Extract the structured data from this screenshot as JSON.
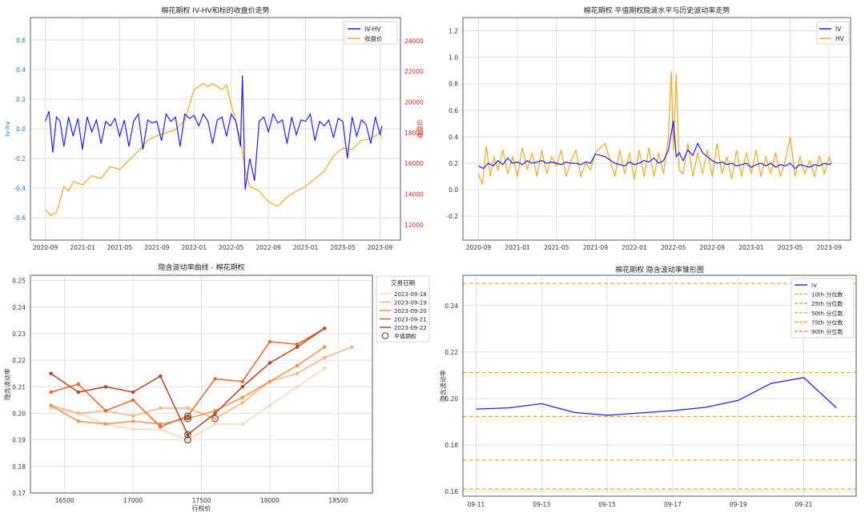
{
  "colors": {
    "iv": "#1f1fe6",
    "price": "#f5a623",
    "grid": "#d8d8d8",
    "axis": "#333333",
    "orange_dash": "#f5a623",
    "left_tick": "#1f77b4",
    "right_tick": "#d62728"
  },
  "chart_data": [
    {
      "type": "line",
      "title": "棉花期权 IV-HV和标的收盘价走势",
      "ylabel": "iv-hv",
      "y2label": "收盘价",
      "x_ticks": [
        "2020-09",
        "2021-01",
        "2021-05",
        "2021-09",
        "2022-01",
        "2022-05",
        "2022-09",
        "2023-01",
        "2023-05",
        "2023-09"
      ],
      "ylim": [
        -0.75,
        0.75
      ],
      "y_ticks": [
        "-0.6",
        "-0.4",
        "-0.2",
        "0.0",
        "0.2",
        "0.4",
        "0.6"
      ],
      "y2lim": [
        11000,
        25500
      ],
      "y2_ticks": [
        "12000",
        "14000",
        "16000",
        "18000",
        "20000",
        "22000",
        "24000"
      ],
      "legend": [
        "IV-HV",
        "收盘价"
      ],
      "legend_position": "top-right",
      "series": [
        {
          "name": "IV-HV",
          "x_months": [
            0,
            0.4,
            0.8,
            1.2,
            1.6,
            2,
            2.5,
            3,
            3.5,
            4,
            4.5,
            5,
            5.5,
            6,
            6.5,
            7,
            7.5,
            8,
            8.5,
            9,
            9.5,
            10,
            10.5,
            11,
            11.5,
            12,
            12.5,
            13,
            13.5,
            14,
            14.5,
            15,
            15.5,
            16,
            16.5,
            17,
            17.5,
            18,
            18.5,
            19,
            19.5,
            20,
            20.5,
            21,
            21.2,
            21.5,
            22,
            22.5,
            23,
            23.5,
            24,
            24.5,
            25,
            25.5,
            26,
            26.5,
            27,
            27.5,
            28,
            28.5,
            29,
            29.5,
            30,
            30.5,
            31,
            31.5,
            32,
            32.5,
            33,
            33.5,
            34,
            34.5,
            35,
            35.5,
            36,
            36.2
          ],
          "values": [
            0.05,
            0.12,
            -0.16,
            0.08,
            0.05,
            -0.12,
            0.08,
            -0.05,
            0.07,
            -0.14,
            0.08,
            -0.02,
            0.06,
            -0.1,
            0.05,
            0.02,
            0.07,
            -0.05,
            0.06,
            -0.12,
            0.05,
            0.1,
            -0.14,
            0.06,
            0.04,
            0.05,
            -0.08,
            0.1,
            0.05,
            0.08,
            -0.12,
            0.1,
            0.07,
            0.09,
            0.02,
            0.1,
            0.05,
            -0.1,
            0.06,
            0.08,
            -0.05,
            0.1,
            0.05,
            -0.12,
            0.36,
            -0.41,
            -0.2,
            -0.35,
            0.05,
            0.08,
            -0.02,
            0.1,
            0.04,
            0.06,
            -0.1,
            0.08,
            -0.04,
            0.06,
            0.05,
            0.1,
            -0.08,
            0.05,
            0.02,
            0.06,
            -0.06,
            0.07,
            0.05,
            -0.2,
            0.08,
            -0.05,
            0.06,
            0.03,
            -0.1,
            0.08,
            -0.04,
            0.02
          ]
        },
        {
          "name": "收盘价",
          "x_months": [
            0,
            0.6,
            1.2,
            2,
            2.5,
            3,
            4,
            5,
            6,
            7,
            8,
            9,
            10,
            11,
            12,
            13,
            14,
            15,
            16,
            17,
            17.5,
            18,
            19,
            19.5,
            20,
            20.5,
            21,
            21.5,
            22,
            23,
            24,
            25,
            26,
            27,
            28,
            29,
            30,
            31,
            32,
            33,
            34,
            35,
            36,
            36.2
          ],
          "values": [
            13000,
            12600,
            12800,
            14500,
            14200,
            14800,
            14600,
            15200,
            15000,
            15800,
            15600,
            16200,
            16800,
            17500,
            17800,
            18000,
            18200,
            18800,
            20800,
            21200,
            21000,
            21200,
            20800,
            21100,
            19800,
            18800,
            17500,
            15600,
            14500,
            14200,
            13500,
            13200,
            13800,
            14200,
            14500,
            15000,
            15500,
            16500,
            17000,
            16900,
            17500,
            17600,
            18000,
            17700
          ]
        }
      ]
    },
    {
      "type": "line",
      "title": "棉花期权 平值期权隐波水平与历史波动率走势",
      "x_ticks": [
        "2020-09",
        "2021-01",
        "2021-05",
        "2021-09",
        "2022-01",
        "2022-05",
        "2022-09",
        "2023-01",
        "2023-05",
        "2023-09"
      ],
      "ylim": [
        -0.38,
        1.3
      ],
      "y_ticks": [
        "-0.2",
        "0.0",
        "0.2",
        "0.4",
        "0.6",
        "0.8",
        "1.0",
        "1.2"
      ],
      "legend": [
        "IV",
        "HV"
      ],
      "legend_position": "top-right",
      "series": [
        {
          "name": "IV",
          "x_months": [
            0,
            0.5,
            1,
            1.5,
            2,
            2.5,
            3,
            3.5,
            4,
            4.5,
            5,
            5.5,
            6,
            6.5,
            7,
            7.5,
            8,
            8.5,
            9,
            9.5,
            10,
            10.5,
            11,
            11.5,
            12,
            13,
            14,
            15,
            15.5,
            16,
            16.5,
            17,
            17.5,
            18,
            18.5,
            19,
            19.5,
            20,
            20.3,
            20.6,
            21,
            21.5,
            22,
            22.5,
            23,
            23.5,
            24,
            24.5,
            25,
            25.5,
            26,
            26.5,
            27,
            27.5,
            28,
            28.5,
            29,
            29.5,
            30,
            30.5,
            31,
            31.5,
            32,
            32.5,
            33,
            33.5,
            34,
            34.5,
            35,
            35.5,
            36,
            36.2
          ],
          "values": [
            0.18,
            0.16,
            0.2,
            0.18,
            0.22,
            0.19,
            0.24,
            0.2,
            0.21,
            0.19,
            0.22,
            0.2,
            0.21,
            0.22,
            0.2,
            0.21,
            0.2,
            0.19,
            0.21,
            0.2,
            0.2,
            0.19,
            0.21,
            0.2,
            0.27,
            0.25,
            0.2,
            0.18,
            0.21,
            0.19,
            0.2,
            0.22,
            0.21,
            0.24,
            0.2,
            0.22,
            0.3,
            0.52,
            0.25,
            0.28,
            0.22,
            0.3,
            0.26,
            0.35,
            0.28,
            0.25,
            0.22,
            0.2,
            0.21,
            0.19,
            0.2,
            0.18,
            0.19,
            0.2,
            0.17,
            0.19,
            0.2,
            0.18,
            0.2,
            0.17,
            0.19,
            0.18,
            0.2,
            0.16,
            0.19,
            0.18,
            0.17,
            0.19,
            0.18,
            0.2,
            0.19,
            0.2
          ]
        },
        {
          "name": "HV",
          "x_months": [
            0,
            0.4,
            0.8,
            1.2,
            1.6,
            2,
            2.5,
            3,
            3.5,
            4,
            4.5,
            5,
            5.5,
            6,
            6.5,
            7,
            7.5,
            8,
            8.5,
            9,
            9.5,
            10,
            10.5,
            11,
            11.5,
            12,
            13,
            14,
            14.5,
            15,
            15.5,
            16,
            16.5,
            17,
            17.5,
            18,
            18.5,
            19,
            19.5,
            19.8,
            20,
            20.3,
            20.6,
            21,
            21.5,
            22,
            22.5,
            23,
            23.5,
            24,
            24.5,
            25,
            25.5,
            26,
            26.5,
            27,
            27.5,
            28,
            28.5,
            29,
            29.5,
            30,
            30.5,
            31,
            31.5,
            32,
            32.5,
            33,
            33.5,
            34,
            34.5,
            35,
            35.5,
            36,
            36.2
          ],
          "values": [
            0.12,
            0.04,
            0.33,
            0.1,
            0.25,
            0.15,
            0.3,
            0.12,
            0.25,
            0.1,
            0.32,
            0.15,
            0.28,
            0.1,
            0.3,
            0.12,
            0.25,
            0.18,
            0.3,
            0.1,
            0.22,
            0.3,
            0.1,
            0.2,
            0.15,
            0.28,
            0.35,
            0.1,
            0.3,
            0.12,
            0.28,
            0.08,
            0.3,
            0.1,
            0.32,
            0.1,
            0.28,
            0.12,
            0.4,
            0.89,
            0.3,
            0.88,
            0.15,
            0.12,
            0.35,
            0.1,
            0.28,
            0.12,
            0.3,
            0.1,
            0.35,
            0.12,
            0.25,
            0.08,
            0.3,
            0.1,
            0.28,
            0.12,
            0.3,
            0.1,
            0.25,
            0.12,
            0.28,
            0.1,
            0.22,
            0.4,
            0.1,
            0.25,
            0.12,
            0.22,
            0.1,
            0.26,
            0.12,
            0.25,
            0.2
          ]
        }
      ]
    },
    {
      "type": "line",
      "title": "隐含波动率曲线 - 棉花期权",
      "xlabel": "行权价",
      "ylabel": "隐含波动率",
      "xlim": [
        16250,
        18750
      ],
      "x_ticks": [
        16500,
        17000,
        17500,
        18000,
        18500
      ],
      "ylim": [
        0.17,
        0.252
      ],
      "y_ticks": [
        "0.17",
        "0.18",
        "0.19",
        "0.20",
        "0.21",
        "0.22",
        "0.23",
        "0.24",
        "0.25"
      ],
      "legend_title": "交易日期",
      "legend": [
        "2023-09-18",
        "2023-09-19",
        "2023-09-20",
        "2023-09-21",
        "2023-09-22",
        "平值期权"
      ],
      "legend_position": "top-right",
      "series": [
        {
          "name": "2023-09-18",
          "color": "#fdd5b4",
          "x": [
            16400,
            16600,
            16800,
            17000,
            17200,
            17400,
            17600,
            17800,
            18000,
            18200,
            18400
          ],
          "values": [
            0.202,
            0.2,
            0.196,
            0.194,
            0.194,
            0.19,
            0.196,
            0.196,
            0.203,
            0.21,
            0.217
          ]
        },
        {
          "name": "2023-09-19",
          "color": "#fdb07e",
          "x": [
            16400,
            16600,
            16800,
            17000,
            17200,
            17400,
            17600,
            17800,
            18000,
            18200,
            18400,
            18600
          ],
          "values": [
            0.203,
            0.2,
            0.201,
            0.199,
            0.202,
            0.202,
            0.198,
            0.204,
            0.212,
            0.215,
            0.221,
            0.225
          ]
        },
        {
          "name": "2023-09-20",
          "color": "#f98d4c",
          "x": [
            16400,
            16600,
            16800,
            17000,
            17200,
            17400,
            17600,
            17800,
            18000,
            18200,
            18400
          ],
          "values": [
            0.203,
            0.197,
            0.196,
            0.197,
            0.196,
            0.198,
            0.201,
            0.206,
            0.212,
            0.218,
            0.225
          ]
        },
        {
          "name": "2023-09-21",
          "color": "#e9672a",
          "x": [
            16400,
            16600,
            16800,
            17000,
            17200,
            17400,
            17600,
            17800,
            18000,
            18200,
            18400
          ],
          "values": [
            0.208,
            0.211,
            0.201,
            0.205,
            0.195,
            0.199,
            0.213,
            0.212,
            0.227,
            0.226,
            0.232
          ]
        },
        {
          "name": "2023-09-22",
          "color": "#b8431a",
          "x": [
            16400,
            16600,
            16800,
            17000,
            17200,
            17400,
            17600,
            17800,
            18000,
            18200,
            18400
          ],
          "values": [
            0.215,
            0.208,
            0.21,
            0.208,
            0.214,
            0.192,
            0.2,
            0.21,
            0.219,
            0.225,
            0.232
          ]
        }
      ],
      "atm_points": [
        [
          17400,
          0.19
        ],
        [
          17400,
          0.192
        ],
        [
          17400,
          0.198
        ],
        [
          17400,
          0.199
        ],
        [
          17600,
          0.198
        ]
      ]
    },
    {
      "type": "line",
      "title": "棉花期权 隐含波动率锥形图",
      "ylabel": "隐含波动率",
      "x_ticks": [
        "09-11",
        "09-13",
        "09-15",
        "09-17",
        "09-19",
        "09-21"
      ],
      "x_tick_days": [
        11,
        13,
        15,
        17,
        19,
        21
      ],
      "xlim": [
        10.6,
        22.6
      ],
      "ylim": [
        0.158,
        0.253
      ],
      "y_ticks": [
        "0.16",
        "0.18",
        "0.20",
        "0.22",
        "0.24"
      ],
      "legend": [
        "IV",
        "10th 分位数",
        "25th 分位数",
        "50th 分位数",
        "75th 分位数",
        "90th 分位数"
      ],
      "legend_position": "top-right",
      "series": [
        {
          "name": "IV",
          "x_days": [
            11,
            12,
            13,
            14,
            15,
            16,
            17,
            18,
            19,
            20,
            21,
            22
          ],
          "values": [
            0.1955,
            0.196,
            0.1978,
            0.194,
            0.1928,
            0.1938,
            0.1948,
            0.1962,
            0.1992,
            0.2065,
            0.209,
            0.196
          ]
        }
      ],
      "quantiles": [
        {
          "name": "10th 分位数",
          "value": 0.161
        },
        {
          "name": "25th 分位数",
          "value": 0.1735
        },
        {
          "name": "50th 分位数",
          "value": 0.1923
        },
        {
          "name": "75th 分位数",
          "value": 0.2112
        },
        {
          "name": "90th 分位数",
          "value": 0.2495
        }
      ]
    }
  ]
}
